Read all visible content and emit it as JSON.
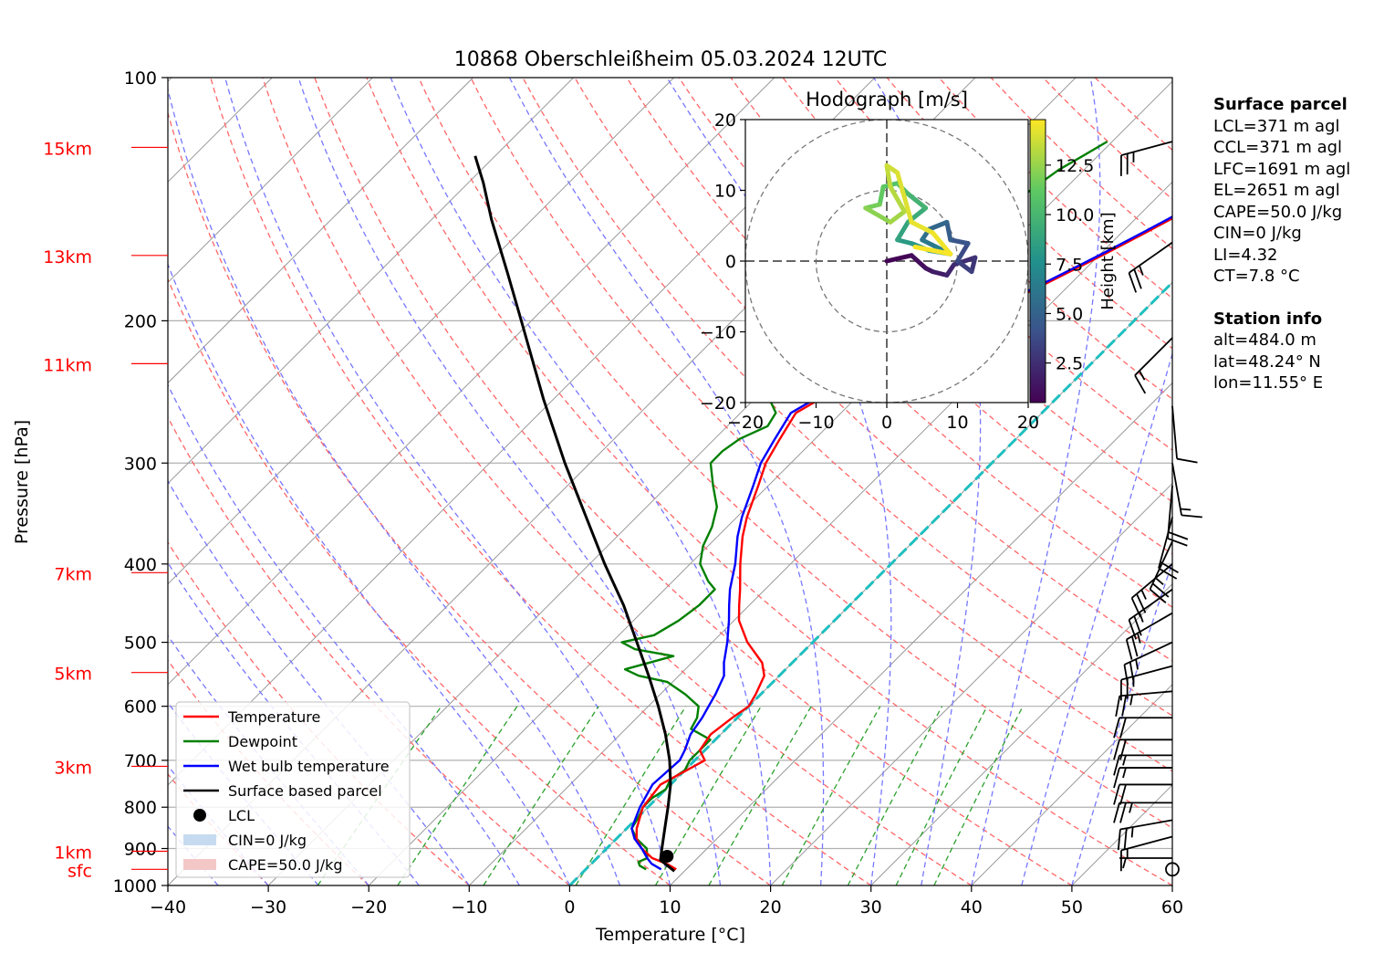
{
  "title": "10868 Oberschleißheim 05.03.2024 12UTC",
  "colors": {
    "temperature": "#ff0000",
    "dewpoint": "#008000",
    "wetbulb": "#0000ff",
    "parcel": "#000000",
    "dry_adiabat": "#ff6666",
    "moist_adiabat": "#7777ff",
    "mixing_ratio": "#2ca02c",
    "isotherm": "#999999",
    "zero_isotherm": "#1fbfbf",
    "height_label": "#ff0000",
    "cin_fill": "#c6dbef",
    "cape_fill": "#f4c7c7"
  },
  "chart_data": [
    {
      "type": "line",
      "subtype": "skew-T log-p diagram",
      "title": "10868 Oberschleißheim 05.03.2024 12UTC",
      "xlabel": "Temperature [°C]",
      "ylabel": "Pressure [hPa]",
      "xlim": [
        -40,
        60
      ],
      "ylim": [
        1000,
        100
      ],
      "y_scale": "log",
      "x_ticks": [
        -40,
        -30,
        -20,
        -10,
        0,
        10,
        20,
        30,
        40,
        50,
        60
      ],
      "x_tick_labels": [
        "−40",
        "−30",
        "−20",
        "−10",
        "0",
        "10",
        "20",
        "30",
        "40",
        "50",
        "60"
      ],
      "y_ticks": [
        100,
        200,
        300,
        400,
        500,
        600,
        700,
        800,
        900,
        1000
      ],
      "y_tick_labels": [
        "100",
        "200",
        "300",
        "400",
        "500",
        "600",
        "700",
        "800",
        "900",
        "1000"
      ],
      "grid": true,
      "legend_position": "lower-left",
      "height_labels": [
        {
          "label": "sfc",
          "p": 955
        },
        {
          "label": "1km",
          "p": 907
        },
        {
          "label": "3km",
          "p": 712
        },
        {
          "label": "5km",
          "p": 545
        },
        {
          "label": "7km",
          "p": 410
        },
        {
          "label": "11km",
          "p": 226
        },
        {
          "label": "13km",
          "p": 166
        },
        {
          "label": "15km",
          "p": 122
        }
      ],
      "series": [
        {
          "name": "Temperature",
          "p": [
            955,
            940,
            925,
            900,
            875,
            850,
            800,
            750,
            700,
            680,
            650,
            620,
            600,
            580,
            550,
            530,
            500,
            470,
            450,
            430,
            400,
            370,
            350,
            320,
            300,
            280,
            260,
            250,
            240,
            230,
            220,
            210,
            200,
            190,
            180,
            170,
            165,
            160,
            155,
            150,
            145,
            140,
            135,
            130,
            125,
            120
          ],
          "t": [
            9.0,
            7.5,
            5.5,
            3.5,
            2.0,
            1.0,
            -0.5,
            -1.0,
            1.0,
            -0.5,
            -1.0,
            -0.5,
            0.0,
            -0.5,
            -1.5,
            -3.0,
            -6.5,
            -9.5,
            -11.0,
            -12.5,
            -15.0,
            -17.5,
            -19.0,
            -21.0,
            -22.5,
            -23.5,
            -24.5,
            -23.5,
            -23.0,
            -22.0,
            -20.5,
            -18.5,
            -16.0,
            -14.5,
            -12.5,
            -10.5,
            -9.5,
            -8.5,
            -7.5,
            -6.5,
            -5.5,
            -5.0,
            -4.0,
            -3.0,
            -2.0,
            -1.5
          ]
        },
        {
          "name": "Dewpoint",
          "p": [
            955,
            945,
            935,
            925,
            900,
            875,
            850,
            820,
            800,
            780,
            760,
            740,
            720,
            700,
            680,
            660,
            640,
            620,
            600,
            580,
            560,
            550,
            540,
            520,
            510,
            500,
            490,
            470,
            450,
            430,
            420,
            400,
            380,
            360,
            340,
            320,
            300,
            290,
            280,
            270,
            260,
            250,
            240,
            230,
            220,
            210,
            200,
            190,
            180,
            170,
            160,
            150,
            140,
            130,
            125,
            120
          ],
          "t": [
            6.0,
            5.0,
            4.5,
            5.0,
            4.0,
            2.0,
            0.5,
            0.0,
            -0.5,
            -0.5,
            0.0,
            -0.5,
            0.0,
            -0.5,
            -0.5,
            -0.5,
            -3.5,
            -4.0,
            -5.0,
            -7.5,
            -10.5,
            -14.0,
            -16.0,
            -12.5,
            -17.0,
            -19.0,
            -16.5,
            -15.5,
            -15.0,
            -15.0,
            -16.5,
            -19.0,
            -20.5,
            -21.5,
            -23.0,
            -25.5,
            -28.0,
            -28.0,
            -27.5,
            -26.0,
            -26.5,
            -28.5,
            -27.0,
            -30.0,
            -31.0,
            -32.5,
            -33.0,
            -32.0,
            -30.0,
            -28.0,
            -26.5,
            -25.0,
            -23.5,
            -22.5,
            -21.5,
            -20.5
          ]
        },
        {
          "name": "Wet bulb temperature",
          "p": [
            955,
            940,
            925,
            900,
            875,
            850,
            800,
            750,
            700,
            680,
            650,
            620,
            600,
            580,
            550,
            530,
            500,
            470,
            450,
            430,
            400,
            370,
            350,
            320,
            300,
            280,
            260,
            250,
            240,
            230,
            220,
            210,
            200,
            190,
            180,
            170,
            165,
            160,
            155,
            150,
            145,
            140,
            135,
            130,
            125,
            120
          ],
          "t": [
            7.5,
            6.0,
            5.0,
            3.5,
            1.8,
            0.5,
            -0.8,
            -1.8,
            -1.5,
            -2.0,
            -3.0,
            -3.5,
            -4.0,
            -4.5,
            -5.5,
            -6.8,
            -8.5,
            -10.5,
            -12.0,
            -13.5,
            -15.5,
            -18.0,
            -19.5,
            -21.5,
            -23.0,
            -24.0,
            -25.0,
            -24.0,
            -23.3,
            -22.3,
            -20.8,
            -18.8,
            -16.3,
            -14.8,
            -12.8,
            -10.8,
            -9.8,
            -8.8,
            -7.8,
            -6.8,
            -5.8,
            -5.3,
            -4.3,
            -3.3,
            -2.3,
            -1.8
          ]
        },
        {
          "name": "Surface based parcel",
          "p": [
            960,
            930,
            900,
            850,
            800,
            750,
            700,
            650,
            600,
            550,
            500,
            450,
            400,
            350,
            300,
            250,
            200,
            175,
            150,
            135,
            125
          ],
          "t": [
            9.0,
            6.5,
            5.5,
            3.8,
            2.0,
            0.0,
            -2.5,
            -5.5,
            -9.0,
            -13.0,
            -17.5,
            -22.5,
            -28.5,
            -35.0,
            -42.5,
            -51.0,
            -61.0,
            -67.0,
            -74.0,
            -78.5,
            -82.0
          ]
        }
      ],
      "lcl_point": {
        "p": 920,
        "t": 6.8
      },
      "legend": [
        {
          "label": "Temperature",
          "kind": "line",
          "color": "#ff0000"
        },
        {
          "label": "Dewpoint",
          "kind": "line",
          "color": "#008000"
        },
        {
          "label": "Wet bulb temperature",
          "kind": "line",
          "color": "#0000ff"
        },
        {
          "label": "Surface based parcel",
          "kind": "line",
          "color": "#000000"
        },
        {
          "label": "LCL",
          "kind": "dot",
          "color": "#000000"
        },
        {
          "label": "CIN=0 J/kg",
          "kind": "patch",
          "color": "#c6dbef"
        },
        {
          "label": "CAPE=50.0 J/kg",
          "kind": "patch",
          "color": "#f4c7c7"
        }
      ]
    },
    {
      "type": "line",
      "subtype": "hodograph",
      "title": "Hodograph [m/s]",
      "xlim": [
        -20,
        20
      ],
      "ylim": [
        -20,
        20
      ],
      "x_ticks": [
        -20,
        -10,
        0,
        10,
        20
      ],
      "y_ticks": [
        -20,
        -10,
        0,
        10,
        20
      ],
      "tick_labels": [
        "−20",
        "−10",
        "0",
        "10",
        "20"
      ],
      "rings": [
        10,
        20
      ],
      "colorbar": {
        "label": "Height [km]",
        "range": [
          0.5,
          14.8
        ],
        "ticks": [
          2.5,
          5.0,
          7.5,
          10.0,
          12.5
        ],
        "tick_labels": [
          "2.5",
          "5.0",
          "7.5",
          "10.0",
          "12.5"
        ]
      },
      "points": [
        {
          "u": 0,
          "v": 0,
          "h": 0.5
        },
        {
          "u": 3.5,
          "v": 0.8,
          "h": 0.8
        },
        {
          "u": 5.5,
          "v": -1.0,
          "h": 1.2
        },
        {
          "u": 6.5,
          "v": -1.5,
          "h": 1.5
        },
        {
          "u": 8.5,
          "v": -2.0,
          "h": 1.9
        },
        {
          "u": 9.5,
          "v": -0.5,
          "h": 2.3
        },
        {
          "u": 12.5,
          "v": 0.5,
          "h": 2.6
        },
        {
          "u": 12.0,
          "v": -1.5,
          "h": 3.0
        },
        {
          "u": 10.0,
          "v": 0.0,
          "h": 3.5
        },
        {
          "u": 11.5,
          "v": 2.5,
          "h": 4.0
        },
        {
          "u": 9.0,
          "v": 3.0,
          "h": 4.5
        },
        {
          "u": 8.5,
          "v": 5.5,
          "h": 5.0
        },
        {
          "u": 6.0,
          "v": 4.5,
          "h": 5.5
        },
        {
          "u": 5.0,
          "v": 3.0,
          "h": 6.0
        },
        {
          "u": 7.0,
          "v": 2.0,
          "h": 6.5
        },
        {
          "u": 9.0,
          "v": 1.0,
          "h": 7.0
        },
        {
          "u": 6.0,
          "v": 1.5,
          "h": 7.5
        },
        {
          "u": 3.5,
          "v": 2.5,
          "h": 8.0
        },
        {
          "u": 1.5,
          "v": 3.0,
          "h": 8.5
        },
        {
          "u": 3.0,
          "v": 5.5,
          "h": 9.0
        },
        {
          "u": 5.5,
          "v": 7.5,
          "h": 9.5
        },
        {
          "u": 3.0,
          "v": 9.5,
          "h": 10.0
        },
        {
          "u": 1.5,
          "v": 11.0,
          "h": 10.5
        },
        {
          "u": -0.5,
          "v": 10.5,
          "h": 11.0
        },
        {
          "u": -1.0,
          "v": 8.0,
          "h": 11.5
        },
        {
          "u": -3.0,
          "v": 7.5,
          "h": 12.0
        },
        {
          "u": 0.5,
          "v": 5.5,
          "h": 12.5
        },
        {
          "u": 2.5,
          "v": 7.0,
          "h": 13.0
        },
        {
          "u": 0.5,
          "v": 10.5,
          "h": 13.3
        },
        {
          "u": 0.0,
          "v": 13.5,
          "h": 13.6
        },
        {
          "u": 1.5,
          "v": 12.5,
          "h": 13.9
        },
        {
          "u": 3.5,
          "v": 5.5,
          "h": 14.2
        },
        {
          "u": 6.5,
          "v": 4.0,
          "h": 14.4
        },
        {
          "u": 9.0,
          "v": 1.0,
          "h": 14.6
        },
        {
          "u": 4.0,
          "v": 2.0,
          "h": 14.8
        }
      ]
    },
    {
      "type": "table",
      "subtype": "wind barbs",
      "units": "kt",
      "barbs": [
        {
          "p": 925,
          "dir": 270,
          "kt": 5
        },
        {
          "p": 870,
          "dir": 255,
          "kt": 15
        },
        {
          "p": 830,
          "dir": 260,
          "kt": 25
        },
        {
          "p": 790,
          "dir": 270,
          "kt": 25
        },
        {
          "p": 750,
          "dir": 270,
          "kt": 20
        },
        {
          "p": 715,
          "dir": 270,
          "kt": 15
        },
        {
          "p": 690,
          "dir": 270,
          "kt": 15
        },
        {
          "p": 660,
          "dir": 270,
          "kt": 20
        },
        {
          "p": 620,
          "dir": 270,
          "kt": 20
        },
        {
          "p": 575,
          "dir": 265,
          "kt": 25
        },
        {
          "p": 535,
          "dir": 255,
          "kt": 25
        },
        {
          "p": 500,
          "dir": 245,
          "kt": 25
        },
        {
          "p": 460,
          "dir": 240,
          "kt": 25
        },
        {
          "p": 430,
          "dir": 235,
          "kt": 25
        },
        {
          "p": 400,
          "dir": 230,
          "kt": 25
        },
        {
          "p": 375,
          "dir": 205,
          "kt": 25
        },
        {
          "p": 350,
          "dir": 195,
          "kt": 20
        },
        {
          "p": 320,
          "dir": 185,
          "kt": 20
        },
        {
          "p": 300,
          "dir": 170,
          "kt": 15
        },
        {
          "p": 255,
          "dir": 175,
          "kt": 10
        },
        {
          "p": 210,
          "dir": 225,
          "kt": 15
        },
        {
          "p": 160,
          "dir": 235,
          "kt": 25
        },
        {
          "p": 120,
          "dir": 255,
          "kt": 25
        }
      ],
      "calm_at_sfc": true
    }
  ],
  "info": {
    "parcel_header": "Surface parcel",
    "parcel_lines": [
      "LCL=371 m agl",
      "CCL=371 m agl",
      "LFC=1691 m agl",
      "EL=2651 m agl",
      "CAPE=50.0 J/kg",
      "CIN=0 J/kg",
      "LI=4.32",
      "CT=7.8 °C"
    ],
    "station_header": "Station info",
    "station_lines": [
      "alt=484.0 m",
      "lat=48.24° N",
      "lon=11.55° E"
    ]
  }
}
